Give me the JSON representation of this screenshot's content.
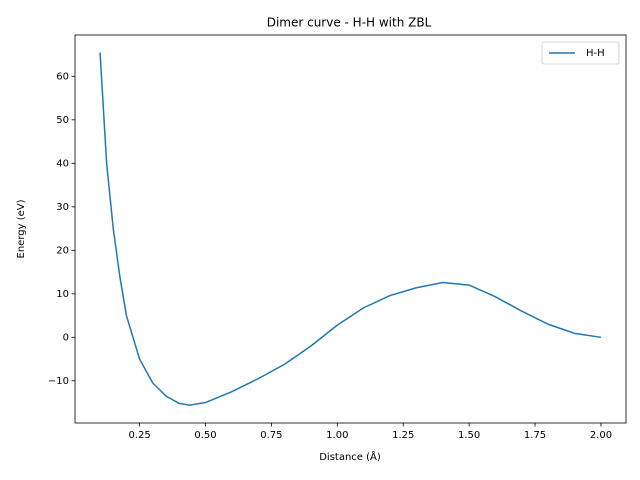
{
  "chart_data": {
    "type": "line",
    "title": "Dimer curve - H-H with ZBL",
    "xlabel": "Distance (Å)",
    "ylabel": "Energy (eV)",
    "x": [
      0.1,
      0.125,
      0.15,
      0.175,
      0.2,
      0.25,
      0.3,
      0.35,
      0.4,
      0.44,
      0.5,
      0.6,
      0.7,
      0.8,
      0.9,
      1.0,
      1.1,
      1.2,
      1.3,
      1.4,
      1.5,
      1.6,
      1.7,
      1.8,
      1.9,
      2.0
    ],
    "series": [
      {
        "name": "H-H",
        "color": "#1f77b4",
        "values": [
          65.5,
          40,
          25,
          14,
          5,
          -5,
          -10.5,
          -13.5,
          -15.2,
          -15.6,
          -15,
          -12.5,
          -9.5,
          -6.2,
          -2,
          2.8,
          6.8,
          9.6,
          11.4,
          12.6,
          12,
          9.3,
          6,
          3,
          0.9,
          0
        ]
      }
    ],
    "xlim": [
      0.005,
      2.095
    ],
    "ylim": [
      -19.7,
      69.5
    ],
    "xticks": [
      0.25,
      {
        "value": 0.5,
        "label": "0.50"
      },
      0.75,
      {
        "value": 1.0,
        "label": "1.00"
      },
      1.25,
      {
        "value": 1.5,
        "label": "1.50"
      },
      1.75,
      {
        "value": 2.0,
        "label": "2.00"
      }
    ],
    "yticks": [
      {
        "value": -10,
        "label": "−10"
      },
      0,
      10,
      20,
      30,
      40,
      50,
      60
    ],
    "grid": false,
    "legend": "upper right"
  }
}
